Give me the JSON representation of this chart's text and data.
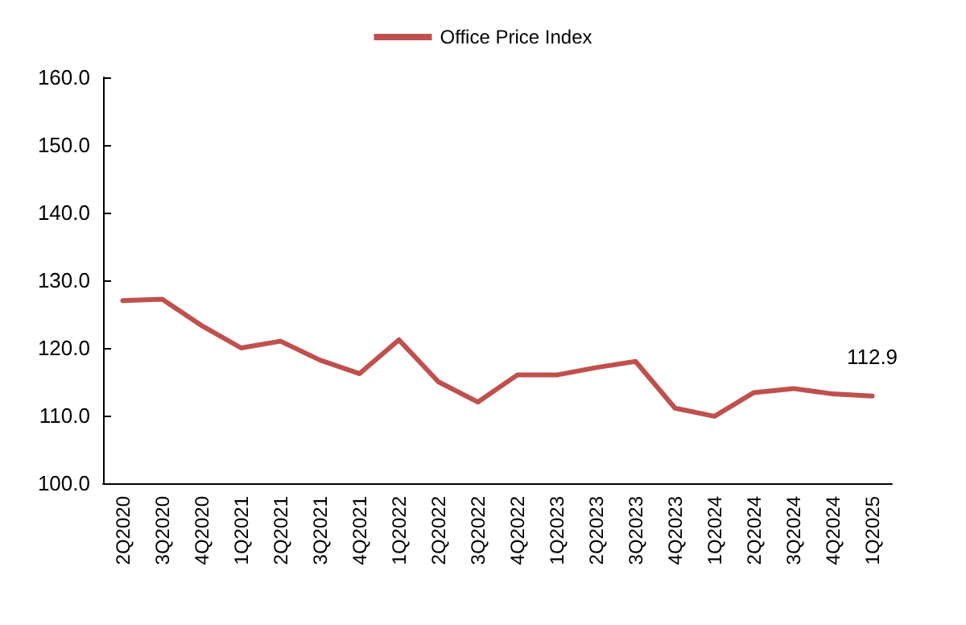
{
  "chart_data": {
    "type": "line",
    "categories": [
      "2Q2020",
      "3Q2020",
      "4Q2020",
      "1Q2021",
      "2Q2021",
      "3Q2021",
      "4Q2021",
      "1Q2022",
      "2Q2022",
      "3Q2022",
      "4Q2022",
      "1Q2023",
      "2Q2023",
      "3Q2023",
      "4Q2023",
      "1Q2024",
      "2Q2024",
      "3Q2024",
      "4Q2024",
      "1Q2025"
    ],
    "series": [
      {
        "name": "Office Price Index",
        "color": "#c0504d",
        "values": [
          127.0,
          127.2,
          123.3,
          120.0,
          121.0,
          118.2,
          116.2,
          121.2,
          115.0,
          112.0,
          116.0,
          116.0,
          117.1,
          118.0,
          111.1,
          109.9,
          113.4,
          114.0,
          113.2,
          112.9
        ],
        "value_labels": [
          null,
          null,
          null,
          null,
          null,
          null,
          null,
          null,
          null,
          null,
          null,
          null,
          null,
          null,
          null,
          null,
          null,
          null,
          null,
          "112.9"
        ]
      }
    ],
    "ylim": [
      100,
      160
    ],
    "yticks": [
      {
        "value": 100,
        "label": "100.0"
      },
      {
        "value": 110,
        "label": "110.0"
      },
      {
        "value": 120,
        "label": "120.0"
      },
      {
        "value": 130,
        "label": "130.0"
      },
      {
        "value": 140,
        "label": "140.0"
      },
      {
        "value": 150,
        "label": "150.0"
      },
      {
        "value": 160,
        "label": "160.0"
      }
    ],
    "grid": false,
    "legend": "top",
    "marker": "none",
    "line_style": "solid"
  }
}
